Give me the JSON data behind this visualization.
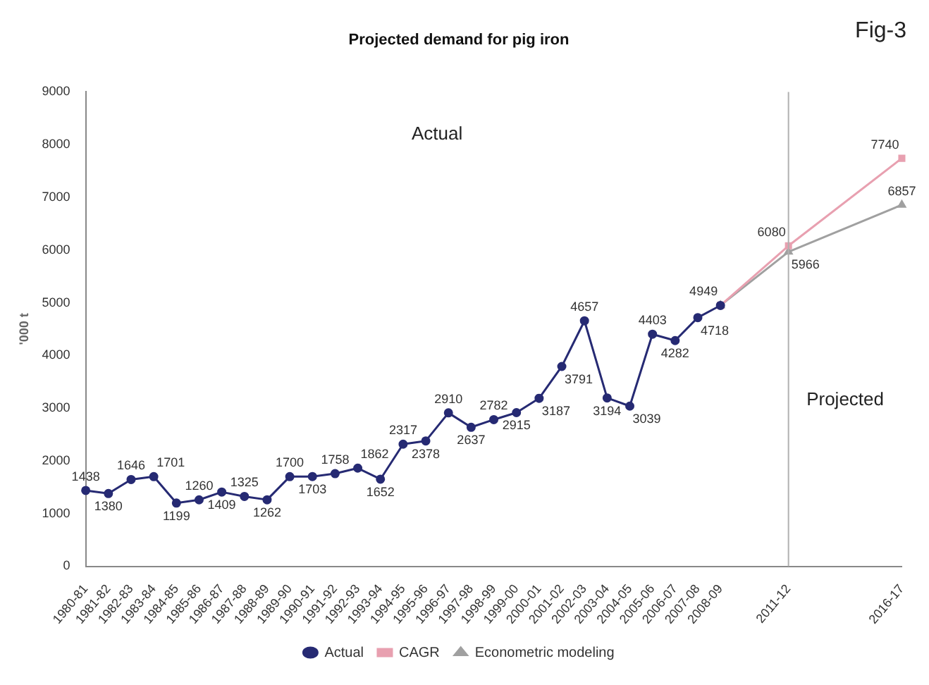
{
  "chart_data": {
    "type": "line",
    "title": "Projected demand for pig iron",
    "ylabel": "'000 t",
    "categories": [
      "1980-81",
      "1981-82",
      "1982-83",
      "1983-84",
      "1984-85",
      "1985-86",
      "1986-87",
      "1987-88",
      "1988-89",
      "1989-90",
      "1990-91",
      "1991-92",
      "1992-93",
      "1993-94",
      "1994-95",
      "1995-96",
      "1996-97",
      "1997-98",
      "1998-99",
      "1999-00",
      "2000-01",
      "2001-02",
      "2002-03",
      "2003-04",
      "2004-05",
      "2005-06",
      "2006-07",
      "2007-08",
      "2008-09",
      null,
      null,
      "2011-12",
      null,
      null,
      null,
      null,
      "2016-17"
    ],
    "series": [
      {
        "name": "Actual",
        "color": "#262a73",
        "marker": "circle",
        "values": [
          1438,
          1380,
          1646,
          1701,
          1199,
          1260,
          1409,
          1325,
          1262,
          1700,
          1703,
          1758,
          1862,
          1652,
          2317,
          2378,
          2910,
          2637,
          2782,
          2915,
          3187,
          3791,
          4657,
          3194,
          3039,
          4403,
          4282,
          4718,
          4949,
          null,
          null,
          null,
          null,
          null,
          null,
          null,
          null
        ]
      },
      {
        "name": "CAGR",
        "color": "#e8a0b0",
        "marker": "square",
        "values": [
          null,
          null,
          null,
          null,
          null,
          null,
          null,
          null,
          null,
          null,
          null,
          null,
          null,
          null,
          null,
          null,
          null,
          null,
          null,
          null,
          null,
          null,
          null,
          null,
          null,
          null,
          null,
          null,
          4949,
          null,
          null,
          6080,
          null,
          null,
          null,
          null,
          7740
        ],
        "value_labels": [
          null,
          null,
          null,
          null,
          null,
          null,
          null,
          null,
          null,
          null,
          null,
          null,
          null,
          null,
          null,
          null,
          null,
          null,
          null,
          null,
          null,
          null,
          null,
          null,
          null,
          null,
          null,
          null,
          null,
          null,
          null,
          "6080",
          null,
          null,
          null,
          null,
          "7740"
        ]
      },
      {
        "name": "Econometric modeling",
        "color": "#a0a0a0",
        "marker": "triangle",
        "values": [
          null,
          null,
          null,
          null,
          null,
          null,
          null,
          null,
          null,
          null,
          null,
          null,
          null,
          null,
          null,
          null,
          null,
          null,
          null,
          null,
          null,
          null,
          null,
          null,
          null,
          null,
          null,
          null,
          4949,
          null,
          null,
          5966,
          null,
          null,
          null,
          null,
          6857
        ],
        "value_labels": [
          null,
          null,
          null,
          null,
          null,
          null,
          null,
          null,
          null,
          null,
          null,
          null,
          null,
          null,
          null,
          null,
          null,
          null,
          null,
          null,
          null,
          null,
          null,
          null,
          null,
          null,
          null,
          null,
          null,
          null,
          null,
          "5966",
          null,
          null,
          null,
          null,
          "6857"
        ]
      }
    ],
    "ref_lines": [
      {
        "axis": "x",
        "value": "2011-12",
        "color": "#b0b0b0"
      }
    ],
    "ylim": [
      0,
      9000
    ],
    "yticks": [
      0,
      1000,
      2000,
      3000,
      4000,
      5000,
      6000,
      7000,
      8000,
      9000
    ],
    "annotations": [
      "Fig-3",
      "Actual",
      "Projected"
    ],
    "data_labels": true,
    "grid": false,
    "legend": "bottom",
    "line_style": "solid"
  }
}
